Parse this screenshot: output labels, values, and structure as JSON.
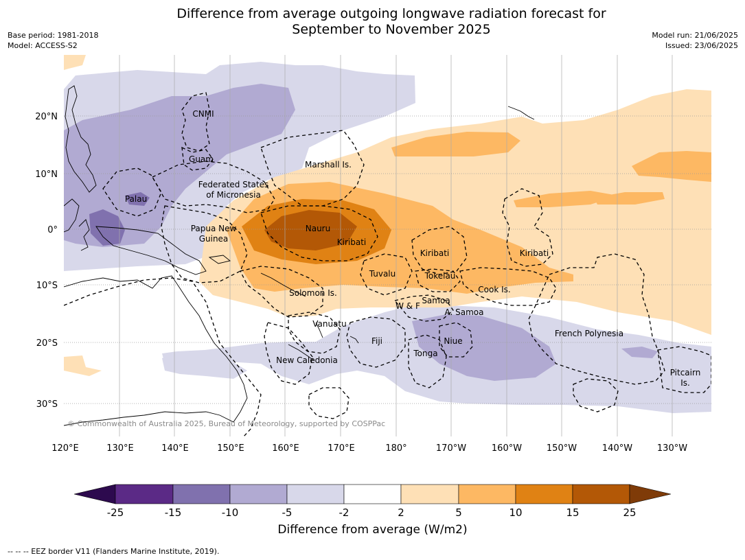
{
  "title": {
    "line1": "Difference from average outgoing longwave radiation forecast for",
    "line2": "September to November 2025"
  },
  "meta": {
    "base_period": "Base period: 1981-2018",
    "model": "Model: ACCESS-S2",
    "model_run": "Model run: 21/06/2025",
    "issued": "Issued: 23/06/2025"
  },
  "map": {
    "copyright": "© Commonwealth of Australia 2025, Bureau of Meteorology, supported by COSPPac",
    "lon_labels": [
      "120°E",
      "130°E",
      "140°E",
      "150°E",
      "160°E",
      "170°E",
      "180°",
      "170°W",
      "160°W",
      "150°W",
      "140°W",
      "130°W"
    ],
    "lat_labels": [
      "20°N",
      "10°N",
      "0°",
      "10°S",
      "20°S",
      "30°S"
    ],
    "region_labels": {
      "cnmi": "CNMI",
      "guam": "Guam",
      "marshall": "Marshall Is.",
      "fsm_1": "Federated States",
      "fsm_2": "of Micronesia",
      "palau": "Palau",
      "png_1": "Papua New",
      "png_2": "Guinea",
      "nauru": "Nauru",
      "kiribati_w": "Kiribati",
      "kiribati_c": "Kiribati",
      "kiribati_e": "Kiribati",
      "tuvalu": "Tuvalu",
      "tokelau": "Tokelau",
      "cook": "Cook Is.",
      "solomon": "Solomon Is.",
      "samoa": "Samoa",
      "wf": "W & F",
      "asamoa": "A. Samoa",
      "vanuatu": "Vanuatu",
      "fiji": "Fiji",
      "niue": "Niue",
      "tonga": "Tonga",
      "french_polynesia": "French Polynesia",
      "new_caledonia": "New Caledonia",
      "pitcairn_1": "Pitcairn",
      "pitcairn_2": "Is."
    }
  },
  "legend": {
    "title": "Difference from average (W/m2)",
    "ticks": [
      "-25",
      "-15",
      "-10",
      "-5",
      "-2",
      "2",
      "5",
      "10",
      "15",
      "25"
    ],
    "colors": {
      "lt_25": "#2d0a4e",
      "n25_15": "#5b2a86",
      "n15_10": "#8071ae",
      "n10_5": "#b1aad2",
      "n5_2": "#d8d8ea",
      "n2_2": "#ffffff",
      "p2_5": "#fee0b6",
      "p5_10": "#fdb863",
      "p10_15": "#e08214",
      "p15_25": "#b35806",
      "gt_25": "#7f3b08"
    }
  },
  "footnote": "-- -- -- EEZ border V11 (Flanders Marine Institute, 2019)."
}
